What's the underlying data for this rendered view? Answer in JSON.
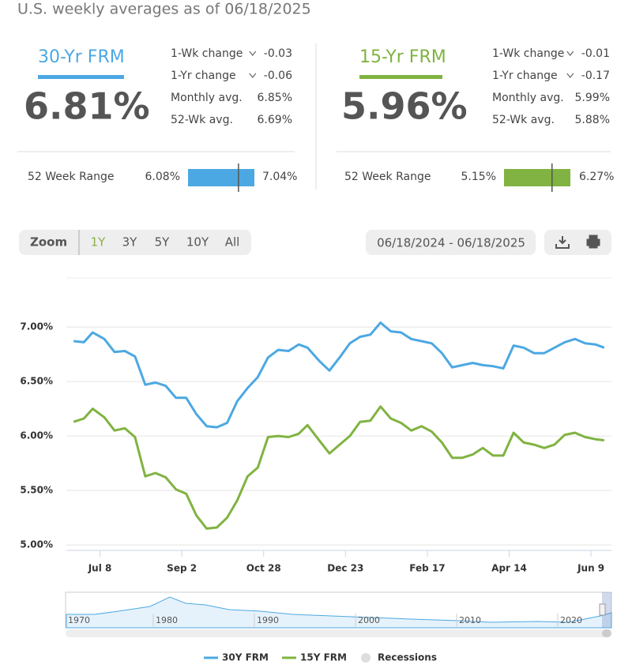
{
  "header": {
    "subtitle": "U.S. weekly averages as of 06/18/2025"
  },
  "panels": [
    {
      "title": "30-Yr FRM",
      "rate": "6.81%",
      "color": "#4ca8e2",
      "stats": [
        {
          "label": "1-Wk change",
          "value": "-0.03",
          "arrow": "down"
        },
        {
          "label": "1-Yr change",
          "value": "-0.06",
          "arrow": "down"
        },
        {
          "label": "Monthly avg.",
          "value": "6.85%"
        },
        {
          "label": "52-Wk avg.",
          "value": "6.69%"
        }
      ],
      "range_label": "52 Week Range",
      "range_low": "6.08%",
      "range_high": "7.04%"
    },
    {
      "title": "15-Yr FRM",
      "rate": "5.96%",
      "color": "#80b341",
      "stats": [
        {
          "label": "1-Wk change",
          "value": "-0.01",
          "arrow": "down"
        },
        {
          "label": "1-Yr change",
          "value": "-0.17",
          "arrow": "down"
        },
        {
          "label": "Monthly avg.",
          "value": "5.99%"
        },
        {
          "label": "52-Wk avg.",
          "value": "5.88%"
        }
      ],
      "range_label": "52 Week Range",
      "range_low": "5.15%",
      "range_high": "6.27%"
    }
  ],
  "toolbar": {
    "zoom": "Zoom",
    "buttons": [
      "1Y",
      "3Y",
      "5Y",
      "10Y",
      "All"
    ],
    "selected": "1Y",
    "date_range": "06/18/2024 - 06/18/2025"
  },
  "navigator": {
    "labels": [
      "1970",
      "1980",
      "1990",
      "2000",
      "2010",
      "2020"
    ]
  },
  "chart_data": {
    "type": "line",
    "x": [
      "2024-06-20",
      "2024-06-27",
      "2024-07-03",
      "2024-07-11",
      "2024-07-18",
      "2024-07-25",
      "2024-08-01",
      "2024-08-08",
      "2024-08-15",
      "2024-08-22",
      "2024-08-29",
      "2024-09-05",
      "2024-09-12",
      "2024-09-19",
      "2024-09-26",
      "2024-10-03",
      "2024-10-10",
      "2024-10-17",
      "2024-10-24",
      "2024-10-31",
      "2024-11-07",
      "2024-11-14",
      "2024-11-21",
      "2024-11-27",
      "2024-12-05",
      "2024-12-12",
      "2024-12-19",
      "2024-12-26",
      "2025-01-02",
      "2025-01-09",
      "2025-01-16",
      "2025-01-23",
      "2025-01-30",
      "2025-02-06",
      "2025-02-13",
      "2025-02-20",
      "2025-02-27",
      "2025-03-06",
      "2025-03-13",
      "2025-03-20",
      "2025-03-27",
      "2025-04-03",
      "2025-04-10",
      "2025-04-17",
      "2025-04-24",
      "2025-05-01",
      "2025-05-08",
      "2025-05-15",
      "2025-05-22",
      "2025-05-29",
      "2025-06-05",
      "2025-06-12",
      "2025-06-18"
    ],
    "xlim": [
      "2024-06-15",
      "2025-06-23"
    ],
    "xticks": [
      {
        "value": "2024-07-08",
        "label": "Jul 8"
      },
      {
        "value": "2024-09-02",
        "label": "Sep 2"
      },
      {
        "value": "2024-10-28",
        "label": "Oct 28"
      },
      {
        "value": "2024-12-23",
        "label": "Dec 23"
      },
      {
        "value": "2025-02-17",
        "label": "Feb 17"
      },
      {
        "value": "2025-04-14",
        "label": "Apr 14"
      },
      {
        "value": "2025-06-09",
        "label": "Jun 9"
      }
    ],
    "ylim": [
      4.95,
      7.45
    ],
    "yticks": [
      {
        "value": 5,
        "label": "5.00%"
      },
      {
        "value": 5.5,
        "label": "5.50%"
      },
      {
        "value": 6,
        "label": "6.00%"
      },
      {
        "value": 6.5,
        "label": "6.50%"
      },
      {
        "value": 7,
        "label": "7.00%"
      }
    ],
    "grid": true,
    "series": [
      {
        "name": "30Y FRM",
        "color": "#4ca8e2",
        "values": [
          6.87,
          6.86,
          6.95,
          6.89,
          6.77,
          6.78,
          6.73,
          6.47,
          6.49,
          6.46,
          6.35,
          6.35,
          6.2,
          6.09,
          6.08,
          6.12,
          6.32,
          6.44,
          6.54,
          6.72,
          6.79,
          6.78,
          6.84,
          6.81,
          6.69,
          6.6,
          6.72,
          6.85,
          6.91,
          6.93,
          7.04,
          6.96,
          6.95,
          6.89,
          6.87,
          6.85,
          6.76,
          6.63,
          6.65,
          6.67,
          6.65,
          6.64,
          6.62,
          6.83,
          6.81,
          6.76,
          6.76,
          6.81,
          6.86,
          6.89,
          6.85,
          6.84,
          6.81
        ]
      },
      {
        "name": "15Y FRM",
        "color": "#80b341",
        "values": [
          6.13,
          6.16,
          6.25,
          6.17,
          6.05,
          6.07,
          5.99,
          5.63,
          5.66,
          5.62,
          5.51,
          5.47,
          5.27,
          5.15,
          5.16,
          5.25,
          5.41,
          5.63,
          5.71,
          5.99,
          6.0,
          5.99,
          6.02,
          6.1,
          5.96,
          5.84,
          5.92,
          6.0,
          6.13,
          6.14,
          6.27,
          6.16,
          6.12,
          6.05,
          6.09,
          6.04,
          5.94,
          5.8,
          5.8,
          5.83,
          5.89,
          5.82,
          5.82,
          6.03,
          5.94,
          5.92,
          5.89,
          5.92,
          6.01,
          6.03,
          5.99,
          5.97,
          5.96
        ]
      }
    ],
    "recessions_label": "Recessions"
  }
}
